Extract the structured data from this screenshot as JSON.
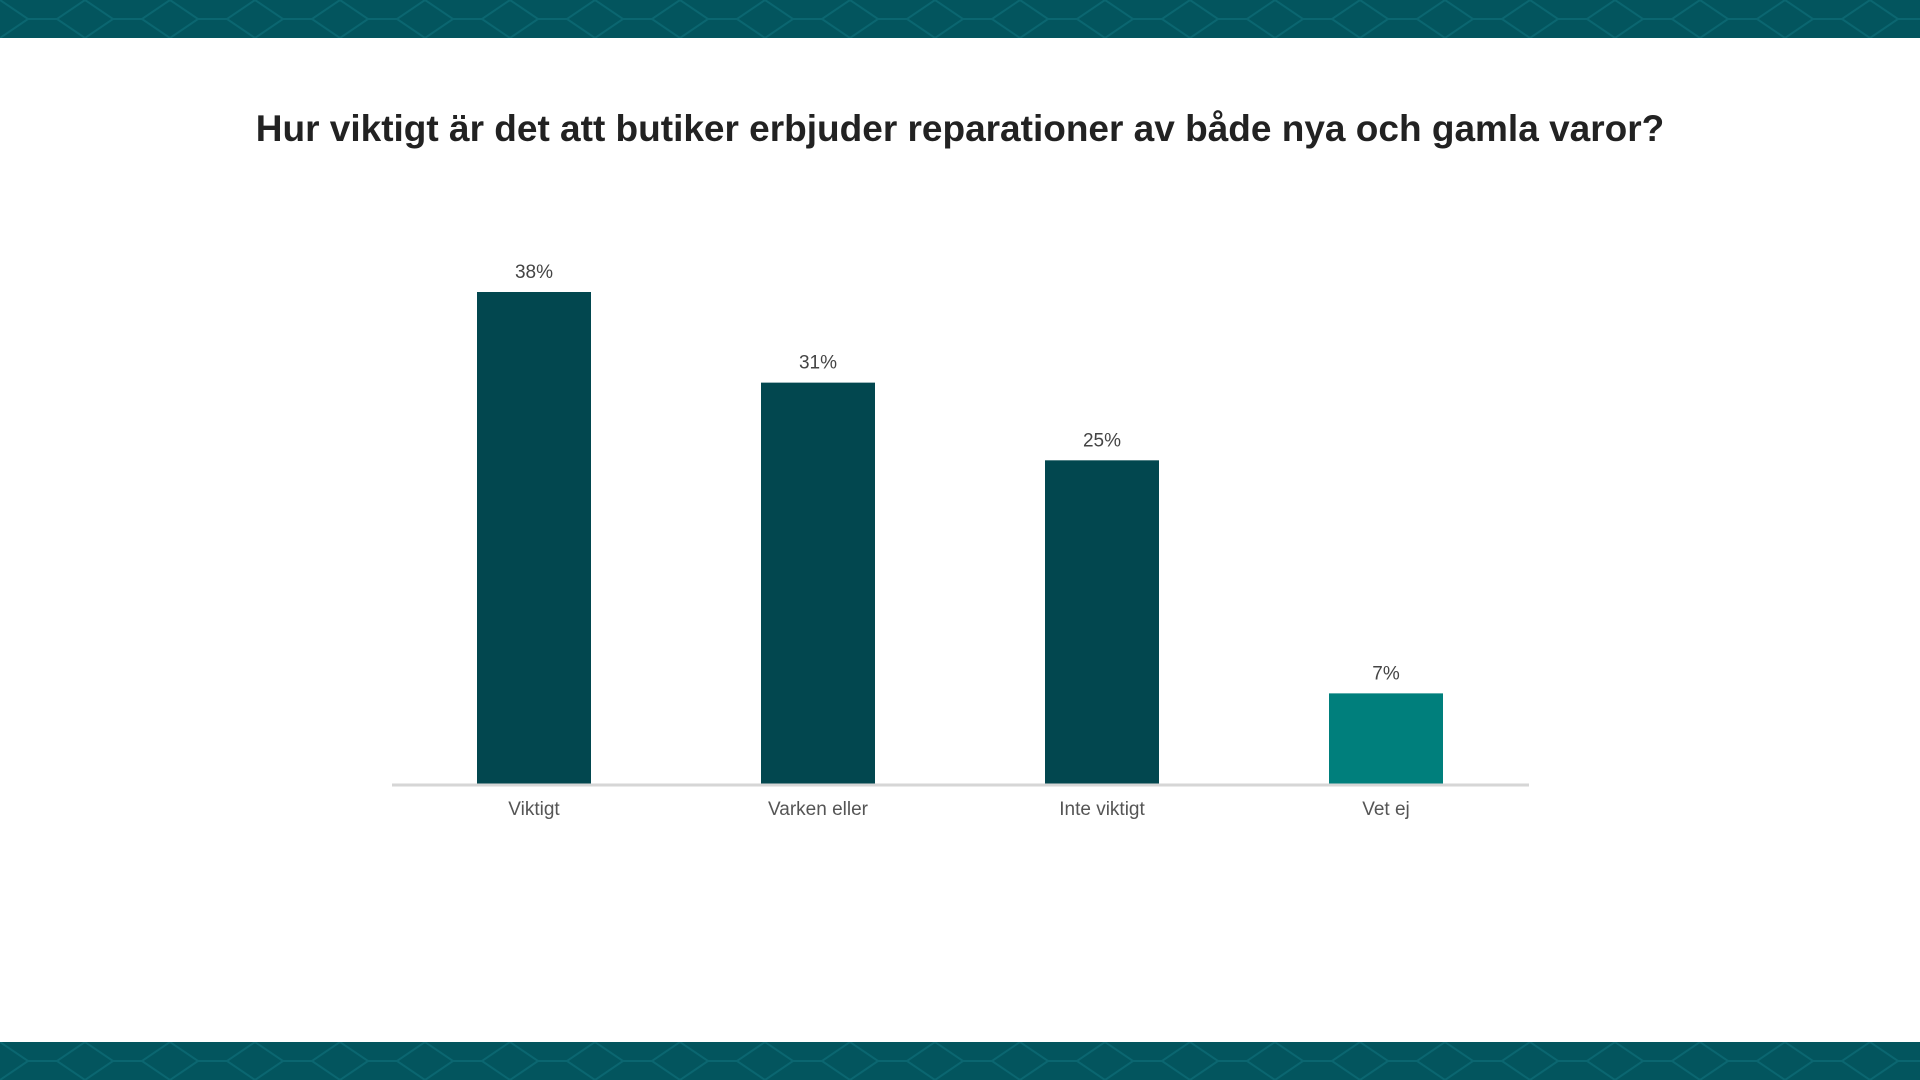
{
  "colors": {
    "band": "#03555e",
    "bar": "#02474f",
    "bar_highlight": "#007f7c",
    "axis": "#d6d6d6"
  },
  "chart_data": {
    "type": "bar",
    "title": "Hur viktigt är det att butiker erbjuder reparationer av både nya och gamla varor?",
    "categories": [
      "Viktigt",
      "Varken eller",
      "Inte viktigt",
      "Vet ej"
    ],
    "values": [
      38,
      31,
      25,
      7
    ],
    "value_labels": [
      "38%",
      "31%",
      "25%",
      "7%"
    ],
    "xlabel": "",
    "ylabel": "",
    "ylim": [
      0,
      38
    ],
    "grid": false,
    "legend": "none"
  }
}
